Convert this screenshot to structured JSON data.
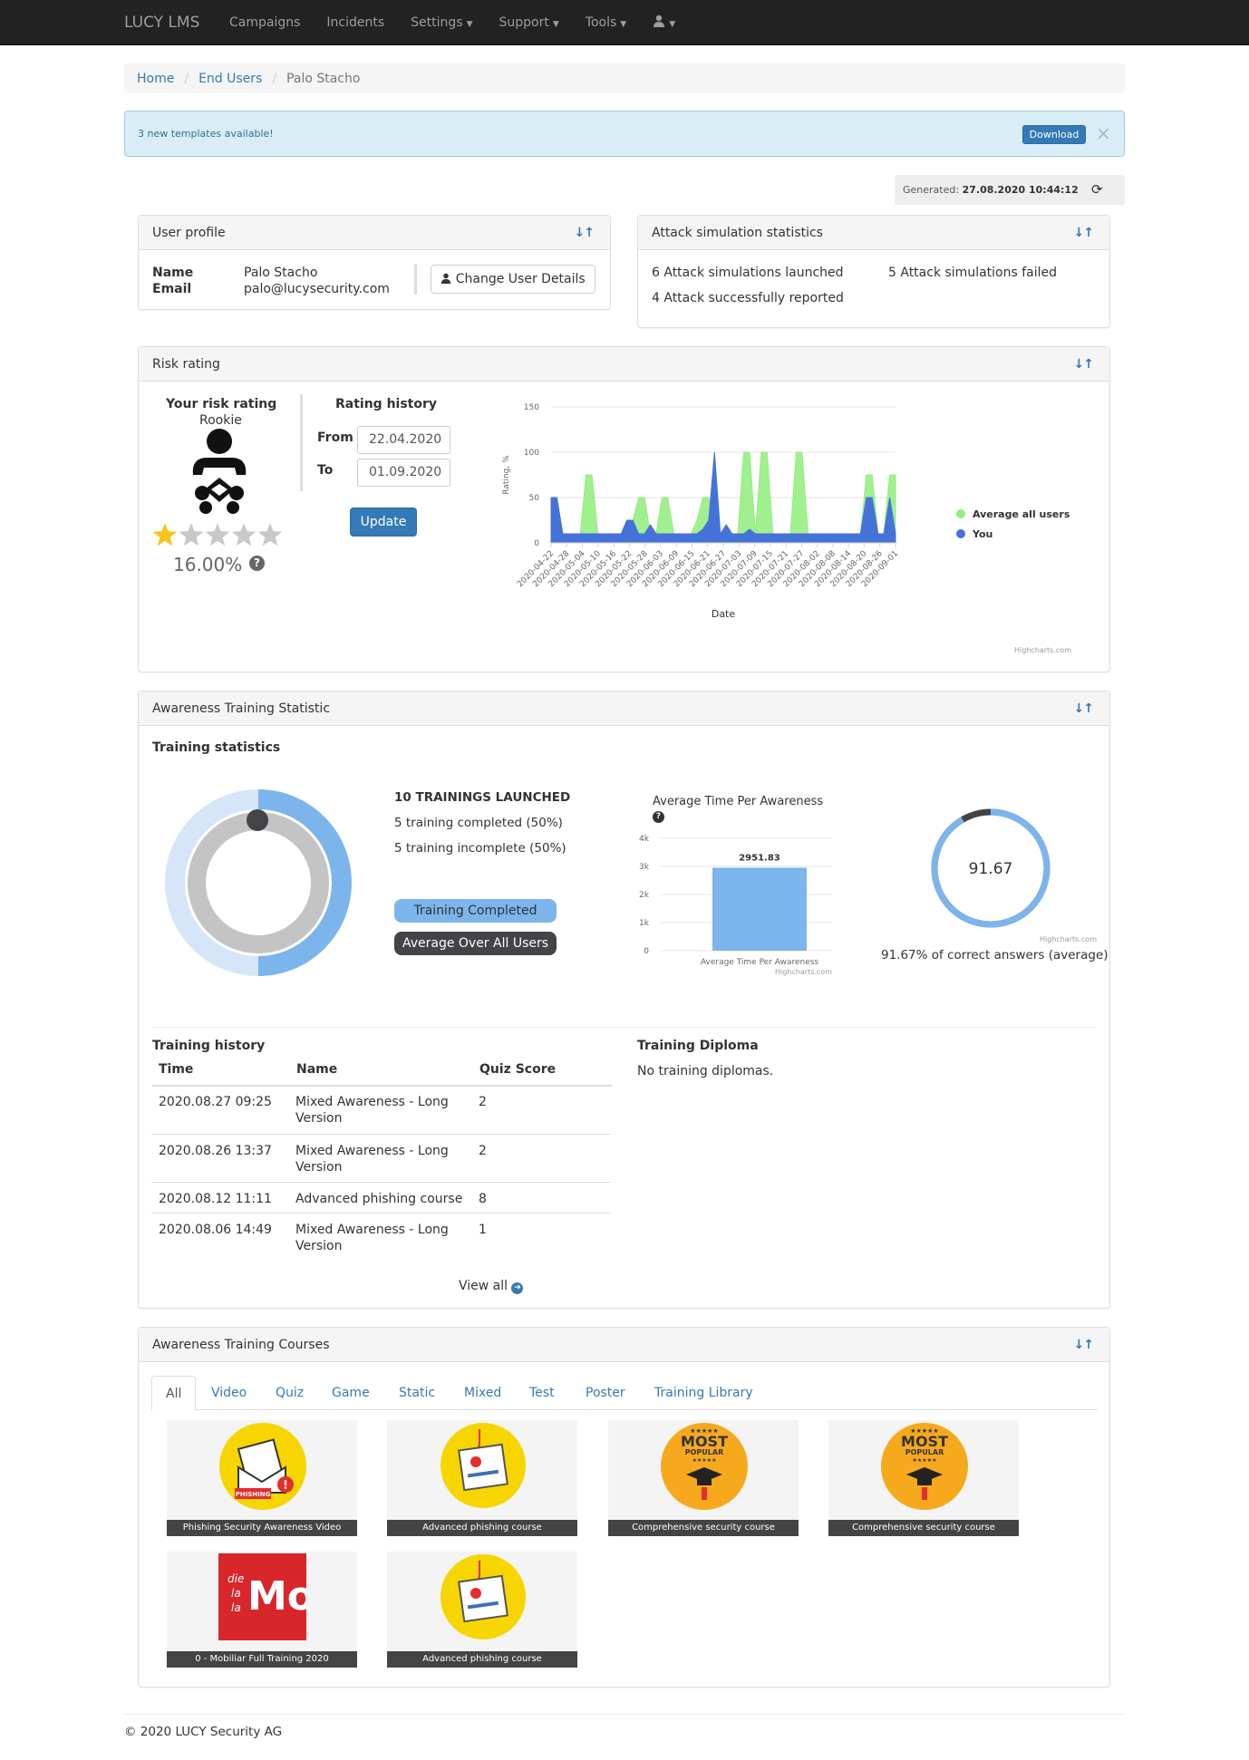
{
  "navbar": {
    "brand": "LUCY LMS",
    "items": [
      "Campaigns",
      "Incidents",
      "Settings",
      "Support",
      "Tools"
    ],
    "dropdown_items": [
      "Settings",
      "Support",
      "Tools",
      "user-menu"
    ]
  },
  "breadcrumb": [
    "Home",
    "End Users",
    "Palo Stacho"
  ],
  "alert": {
    "text": "3 new templates available!",
    "button": "Download",
    "close": "×"
  },
  "generated": {
    "label": "Generated:",
    "value": "27.08.2020 10:44:12"
  },
  "user_profile": {
    "title": "User profile",
    "name_label": "Name",
    "name": "Palo Stacho",
    "email_label": "Email",
    "email": "palo@lucysecurity.com",
    "change_button": "Change User Details"
  },
  "attack_stats": {
    "title": "Attack simulation statistics",
    "launched": "6 Attack simulations launched",
    "failed": "5 Attack simulations failed",
    "reported": "4 Attack successfully reported"
  },
  "risk": {
    "title": "Risk rating",
    "your_label": "Your risk rating",
    "level": "Rookie",
    "stars_filled": 1,
    "stars_total": 5,
    "percent": "16.00%",
    "help": "?",
    "history_label": "Rating history",
    "from_label": "From",
    "from": "22.04.2020",
    "to_label": "To",
    "to": "01.09.2020",
    "update_button": "Update"
  },
  "chart_data": [
    {
      "type": "area",
      "xlabel": "Date",
      "ylabel": "Rating, %",
      "ylim": [
        0,
        150
      ],
      "yticks": [
        0,
        50,
        100,
        150
      ],
      "xticks": [
        "2020-04-22",
        "2020-04-28",
        "2020-05-04",
        "2020-05-10",
        "2020-05-16",
        "2020-05-22",
        "2020-05-28",
        "2020-06-03",
        "2020-06-09",
        "2020-06-15",
        "2020-06-21",
        "2020-06-27",
        "2020-07-03",
        "2020-07-09",
        "2020-07-15",
        "2020-07-21",
        "2020-07-27",
        "2020-08-02",
        "2020-08-08",
        "2020-08-14",
        "2020-08-20",
        "2020-08-26",
        "2020-09-01"
      ],
      "legend_position": "right",
      "credits": "Highcharts.com",
      "series": [
        {
          "name": "Average all users",
          "color": "#90ed7d",
          "values": [
            50,
            50,
            10,
            10,
            10,
            10,
            75,
            75,
            10,
            10,
            10,
            10,
            10,
            25,
            25,
            50,
            50,
            10,
            10,
            50,
            50,
            10,
            10,
            10,
            10,
            25,
            50,
            50,
            15,
            10,
            20,
            10,
            10,
            100,
            100,
            10,
            100,
            100,
            10,
            10,
            10,
            10,
            100,
            100,
            10,
            10,
            10,
            10,
            10,
            10,
            10,
            10,
            10,
            10,
            75,
            75,
            10,
            10,
            75,
            75
          ]
        },
        {
          "name": "You",
          "color": "#4572d8",
          "values": [
            50,
            50,
            10,
            10,
            10,
            10,
            10,
            10,
            10,
            10,
            10,
            10,
            10,
            25,
            25,
            10,
            10,
            20,
            10,
            10,
            10,
            10,
            10,
            10,
            10,
            10,
            15,
            25,
            100,
            10,
            20,
            10,
            10,
            10,
            15,
            10,
            10,
            10,
            10,
            10,
            10,
            10,
            10,
            10,
            10,
            10,
            10,
            10,
            10,
            10,
            10,
            10,
            10,
            10,
            50,
            50,
            10,
            10,
            50,
            10
          ]
        }
      ]
    },
    {
      "type": "bar",
      "title": "Average Time Per Awareness",
      "categories": [
        "Average Time Per Awareness"
      ],
      "values": [
        2951.83
      ],
      "ylim": [
        0,
        4000
      ],
      "yticks": [
        "0",
        "1k",
        "2k",
        "3k",
        "4k"
      ],
      "credits": "Highcharts.com"
    },
    {
      "type": "pie",
      "title": "Training statistics",
      "series": [
        {
          "name": "Training Completed",
          "values": [
            50
          ]
        },
        {
          "name": "Average Over All Users",
          "values": [
            100
          ]
        }
      ]
    },
    {
      "type": "pie",
      "values": [
        91.67
      ],
      "label": "91.67",
      "credits": "Highcharts.com"
    }
  ],
  "awareness": {
    "title": "Awareness Training Statistic",
    "training_statistics": "Training statistics",
    "launched": "10 TRAININGS LAUNCHED",
    "completed": "5 training completed (50%)",
    "incomplete": "5 training incomplete (50%)",
    "legend_completed": "Training Completed",
    "legend_avg": "Average Over All Users",
    "avg_time_title": "Average Time Per Awareness",
    "avg_time_help": "?",
    "bar_value": "2951.83",
    "bar_xlabel": "Average Time Per Awareness",
    "gauge_value": "91.67",
    "gauge_caption": "91.67% of correct answers (average)",
    "credits": "Highcharts.com",
    "history_title": "Training history",
    "columns": [
      "Time",
      "Name",
      "Quiz Score"
    ],
    "rows": [
      {
        "time": "2020.08.27 09:25",
        "name1": "Mixed Awareness - Long",
        "name2": "Version",
        "score": "2"
      },
      {
        "time": "2020.08.26 13:37",
        "name1": "Mixed Awareness - Long",
        "name2": "Version",
        "score": "2"
      },
      {
        "time": "2020.08.12 11:11",
        "name1": "Advanced phishing course",
        "name2": "",
        "score": "8"
      },
      {
        "time": "2020.08.06 14:49",
        "name1": "Mixed Awareness - Long",
        "name2": "Version",
        "score": "1"
      }
    ],
    "view_all": "View all",
    "diploma_title": "Training Diploma",
    "diploma_text": "No training diplomas."
  },
  "courses": {
    "title": "Awareness Training Courses",
    "tabs": [
      "All",
      "Video",
      "Quiz",
      "Game",
      "Static",
      "Mixed",
      "Test",
      "Poster",
      "Training Library"
    ],
    "items": [
      {
        "caption": "Phishing Security Awareness Video",
        "icon": "phishing-envelope-icon",
        "badge": "PHISHING"
      },
      {
        "caption": "Advanced phishing course",
        "icon": "phishing-hook-icon"
      },
      {
        "caption": "Comprehensive security course",
        "icon": "most-popular-icon",
        "badge1": "MOST",
        "badge2": "POPULAR"
      },
      {
        "caption": "Comprehensive security course",
        "icon": "most-popular-icon",
        "badge1": "MOST",
        "badge2": "POPULAR"
      },
      {
        "caption": "0 - Mobiliar Full Training 2020",
        "icon": "mobiliar-logo",
        "logo_text": [
          "die",
          "la",
          "la",
          "Mo"
        ]
      },
      {
        "caption": "Advanced phishing course",
        "icon": "phishing-hook-icon"
      }
    ]
  },
  "footer": {
    "text": "© 2020 LUCY Security AG"
  },
  "colors": {
    "primary": "#337ab7",
    "navbar": "#222222",
    "avg_green": "#90ed7d",
    "you_blue": "#4572d8",
    "bar_blue": "#7cb5ec"
  }
}
